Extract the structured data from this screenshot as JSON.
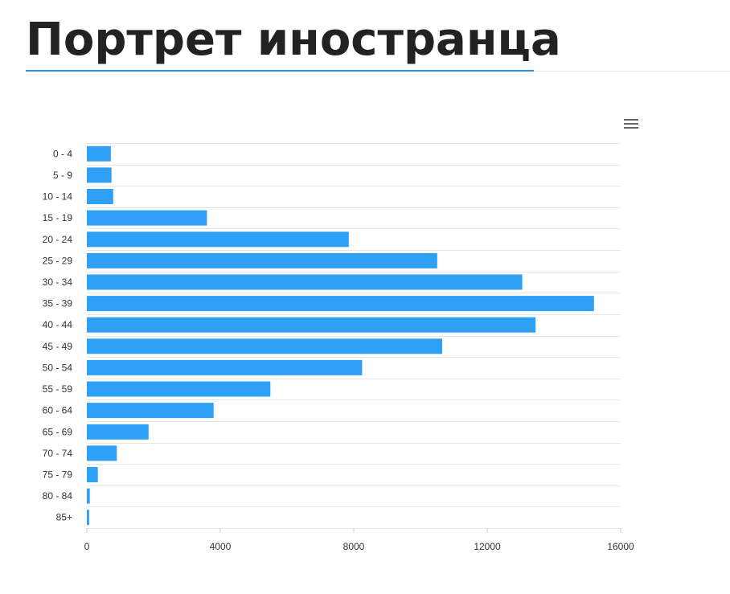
{
  "title": "Портрет иностранца",
  "menu": {
    "icon": "hamburger-menu-icon"
  },
  "colors": {
    "bar": "#2ea1f7",
    "grid": "#e6e6e6",
    "title": "#222222",
    "accent": "#2f8ee8"
  },
  "chart_data": {
    "type": "bar",
    "orientation": "horizontal",
    "categories": [
      "0 - 4",
      "5 - 9",
      "10 - 14",
      "15 - 19",
      "20 - 24",
      "25 - 29",
      "30 - 34",
      "35 - 39",
      "40 - 44",
      "45 - 49",
      "50 - 54",
      "55 - 59",
      "60 - 64",
      "65 - 69",
      "70 - 74",
      "75 - 79",
      "80 - 84",
      "85+"
    ],
    "values": [
      720,
      740,
      790,
      3600,
      7850,
      10500,
      13050,
      15200,
      13450,
      10650,
      8250,
      5500,
      3800,
      1850,
      900,
      330,
      90,
      70
    ],
    "xlim": [
      0,
      16000
    ],
    "xticks": [
      0,
      4000,
      8000,
      12000,
      16000
    ],
    "grid": true,
    "legend": "none"
  }
}
